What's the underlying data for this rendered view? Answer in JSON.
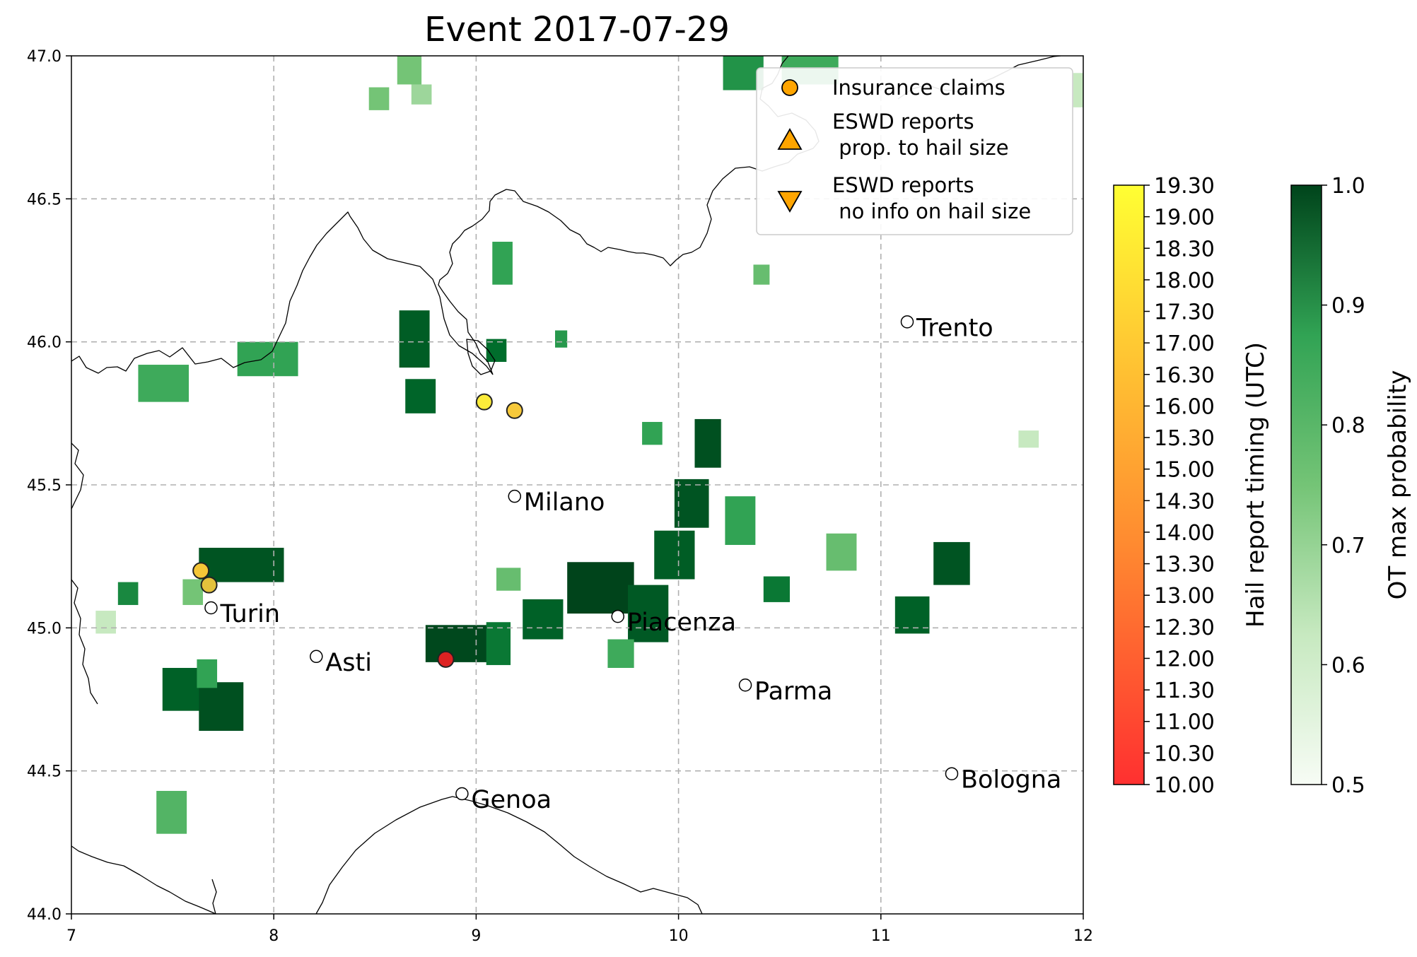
{
  "chart_data": {
    "type": "map",
    "title": "Event 2017-07-29",
    "xlim": [
      7,
      12
    ],
    "ylim": [
      44.0,
      47.0
    ],
    "x_ticks": [
      "7",
      "8",
      "9",
      "10",
      "11",
      "12"
    ],
    "y_ticks": [
      "44.0",
      "44.5",
      "45.0",
      "45.5",
      "46.0",
      "46.5",
      "47.0"
    ],
    "grid": true,
    "legend": {
      "placement": "top-right",
      "entries": [
        {
          "label": "Insurance claims",
          "marker": "circle",
          "color": "#ffa500"
        },
        {
          "label": "ESWD reports\n prop. to hail size",
          "marker": "triangle-up",
          "color": "#ffa500"
        },
        {
          "label": "ESWD reports\n no info on hail size",
          "marker": "triangle-down",
          "color": "#ffa500"
        }
      ]
    },
    "cities": [
      {
        "name": "Trento",
        "lon": 11.13,
        "lat": 46.07
      },
      {
        "name": "Milano",
        "lon": 9.19,
        "lat": 45.46
      },
      {
        "name": "Turin",
        "lon": 7.69,
        "lat": 45.07
      },
      {
        "name": "Piacenza",
        "lon": 9.7,
        "lat": 45.04
      },
      {
        "name": "Asti",
        "lon": 8.21,
        "lat": 44.9
      },
      {
        "name": "Parma",
        "lon": 10.33,
        "lat": 44.8
      },
      {
        "name": "Genoa",
        "lon": 8.93,
        "lat": 44.42
      },
      {
        "name": "Bologna",
        "lon": 11.35,
        "lat": 44.49
      }
    ],
    "hail_reports": [
      {
        "type": "Insurance claims",
        "lon": 9.04,
        "lat": 45.79,
        "time": 19.0,
        "color": "#fcec3a"
      },
      {
        "type": "Insurance claims",
        "lon": 9.19,
        "lat": 45.76,
        "time": 18.0,
        "color": "#f7c93a"
      },
      {
        "type": "Insurance claims",
        "lon": 7.64,
        "lat": 45.2,
        "time": 18.0,
        "color": "#f5c637"
      },
      {
        "type": "Insurance claims",
        "lon": 7.68,
        "lat": 45.15,
        "time": 18.0,
        "color": "#e4c23c"
      },
      {
        "type": "Insurance claims",
        "lon": 8.85,
        "lat": 44.89,
        "time": 10.3,
        "color": "#dd2222"
      }
    ],
    "ot_probability_cells": [
      {
        "lon": 7.63,
        "lat": 45.16,
        "w": 0.42,
        "h": 0.12,
        "p": 0.96
      },
      {
        "lon": 7.33,
        "lat": 45.79,
        "w": 0.25,
        "h": 0.13,
        "p": 0.78
      },
      {
        "lon": 7.45,
        "lat": 44.71,
        "w": 0.2,
        "h": 0.15,
        "p": 0.93
      },
      {
        "lon": 7.63,
        "lat": 44.64,
        "w": 0.22,
        "h": 0.17,
        "p": 0.97
      },
      {
        "lon": 7.82,
        "lat": 45.88,
        "w": 0.3,
        "h": 0.12,
        "p": 0.8
      },
      {
        "lon": 8.62,
        "lat": 45.91,
        "w": 0.15,
        "h": 0.2,
        "p": 0.94
      },
      {
        "lon": 8.65,
        "lat": 45.75,
        "w": 0.15,
        "h": 0.12,
        "p": 0.92
      },
      {
        "lon": 8.75,
        "lat": 44.88,
        "w": 0.35,
        "h": 0.13,
        "p": 0.99
      },
      {
        "lon": 9.05,
        "lat": 44.87,
        "w": 0.12,
        "h": 0.15,
        "p": 0.88
      },
      {
        "lon": 9.45,
        "lat": 45.05,
        "w": 0.33,
        "h": 0.18,
        "p": 1.0
      },
      {
        "lon": 9.75,
        "lat": 44.95,
        "w": 0.2,
        "h": 0.2,
        "p": 0.95
      },
      {
        "lon": 9.88,
        "lat": 45.17,
        "w": 0.2,
        "h": 0.17,
        "p": 0.94
      },
      {
        "lon": 9.98,
        "lat": 45.35,
        "w": 0.17,
        "h": 0.17,
        "p": 0.96
      },
      {
        "lon": 10.08,
        "lat": 45.56,
        "w": 0.13,
        "h": 0.17,
        "p": 0.97
      },
      {
        "lon": 10.23,
        "lat": 45.29,
        "w": 0.15,
        "h": 0.17,
        "p": 0.8
      },
      {
        "lon": 10.42,
        "lat": 45.09,
        "w": 0.13,
        "h": 0.09,
        "p": 0.88
      },
      {
        "lon": 10.73,
        "lat": 45.2,
        "w": 0.15,
        "h": 0.13,
        "p": 0.72
      },
      {
        "lon": 11.07,
        "lat": 44.98,
        "w": 0.17,
        "h": 0.13,
        "p": 0.93
      },
      {
        "lon": 11.26,
        "lat": 45.15,
        "w": 0.18,
        "h": 0.15,
        "p": 0.96
      },
      {
        "lon": 9.65,
        "lat": 44.86,
        "w": 0.13,
        "h": 0.1,
        "p": 0.78
      },
      {
        "lon": 9.23,
        "lat": 44.96,
        "w": 0.2,
        "h": 0.14,
        "p": 0.93
      },
      {
        "lon": 9.08,
        "lat": 46.2,
        "w": 0.1,
        "h": 0.15,
        "p": 0.8
      },
      {
        "lon": 9.05,
        "lat": 45.93,
        "w": 0.1,
        "h": 0.08,
        "p": 0.9
      },
      {
        "lon": 10.51,
        "lat": 46.9,
        "w": 0.28,
        "h": 0.18,
        "p": 0.78
      },
      {
        "lon": 10.22,
        "lat": 46.88,
        "w": 0.2,
        "h": 0.18,
        "p": 0.83
      },
      {
        "lon": 9.1,
        "lat": 45.13,
        "w": 0.12,
        "h": 0.08,
        "p": 0.72
      },
      {
        "lon": 7.62,
        "lat": 44.79,
        "w": 0.1,
        "h": 0.1,
        "p": 0.8
      },
      {
        "lon": 7.42,
        "lat": 44.28,
        "w": 0.15,
        "h": 0.15,
        "p": 0.75
      },
      {
        "lon": 7.55,
        "lat": 45.08,
        "w": 0.1,
        "h": 0.09,
        "p": 0.7
      },
      {
        "lon": 7.23,
        "lat": 45.08,
        "w": 0.1,
        "h": 0.08,
        "p": 0.85
      },
      {
        "lon": 8.68,
        "lat": 46.83,
        "w": 0.1,
        "h": 0.07,
        "p": 0.65
      },
      {
        "lon": 8.61,
        "lat": 46.9,
        "w": 0.12,
        "h": 0.1,
        "p": 0.7
      },
      {
        "lon": 8.47,
        "lat": 46.81,
        "w": 0.1,
        "h": 0.08,
        "p": 0.7
      },
      {
        "lon": 9.82,
        "lat": 45.64,
        "w": 0.1,
        "h": 0.08,
        "p": 0.8
      },
      {
        "lon": 9.39,
        "lat": 45.98,
        "w": 0.06,
        "h": 0.06,
        "p": 0.82
      },
      {
        "lon": 10.37,
        "lat": 46.2,
        "w": 0.08,
        "h": 0.07,
        "p": 0.72
      },
      {
        "lon": 11.68,
        "lat": 45.63,
        "w": 0.1,
        "h": 0.06,
        "p": 0.6
      },
      {
        "lon": 11.95,
        "lat": 46.82,
        "w": 0.1,
        "h": 0.12,
        "p": 0.6
      },
      {
        "lon": 12.0,
        "lat": 46.8,
        "w": 0.06,
        "h": 0.12,
        "p": 0.88
      },
      {
        "lon": 7.12,
        "lat": 44.98,
        "w": 0.1,
        "h": 0.08,
        "p": 0.6
      }
    ],
    "colorbars": [
      {
        "label": "Hail report timing (UTC)",
        "ticks": [
          "10.00",
          "10.30",
          "11.00",
          "11.30",
          "12.00",
          "12.30",
          "13.00",
          "13.30",
          "14.00",
          "14.30",
          "15.00",
          "15.30",
          "16.00",
          "16.30",
          "17.00",
          "17.30",
          "18.00",
          "18.30",
          "19.00",
          "19.30"
        ],
        "colors": [
          "#ff3232",
          "#ff8c32",
          "#ffc832",
          "#ffff32"
        ]
      },
      {
        "label": "OT max probability",
        "ticks": [
          "0.5",
          "0.6",
          "0.7",
          "0.8",
          "0.9",
          "1.0"
        ],
        "colors": [
          "#f7fcf5",
          "#c7e9c0",
          "#74c476",
          "#31a354",
          "#006d2c"
        ]
      }
    ]
  }
}
